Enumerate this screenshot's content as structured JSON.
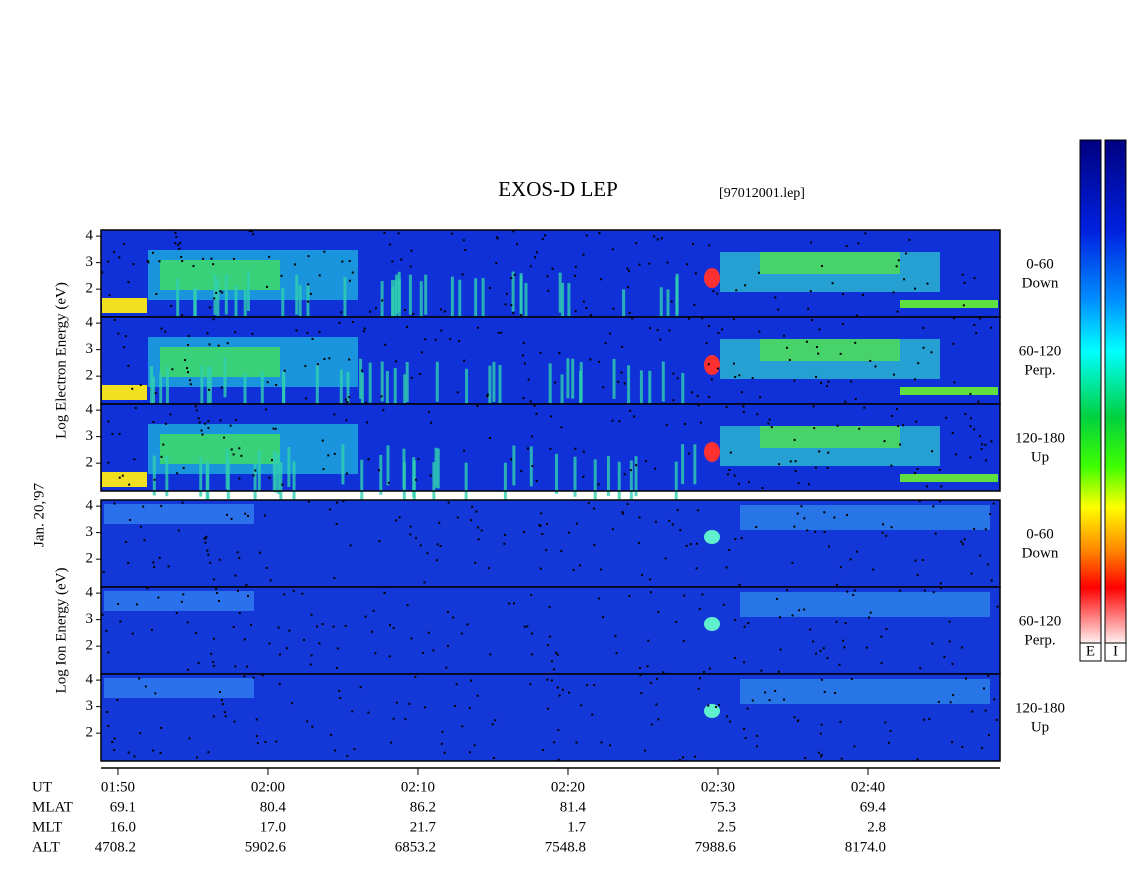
{
  "header": {
    "title": "EXOS-D LEP",
    "file": "[97012001.lep]"
  },
  "date": "Jan. 20,'97",
  "type": "spectrogram",
  "ylim": [
    0.95,
    4.23
  ],
  "yticks": [
    2,
    3,
    4
  ],
  "groups": [
    {
      "label": "Log  Electron  Energy (eV)",
      "panels": [
        [
          "0-60",
          "Down"
        ],
        [
          "60-120",
          "Perp."
        ],
        [
          "120-180",
          "Up"
        ]
      ]
    },
    {
      "label": "Log  Ion  Energy (eV)",
      "panels": [
        [
          "0-60",
          "Down"
        ],
        [
          "60-120",
          "Perp."
        ],
        [
          "120-180",
          "Up"
        ]
      ]
    }
  ],
  "xlim": [
    108.87,
    168.8
  ],
  "xticks": [
    {
      "value": 110,
      "label": "01:50"
    },
    {
      "value": 120,
      "label": "02:00"
    },
    {
      "value": 130,
      "label": "02:10"
    },
    {
      "value": 140,
      "label": "02:20"
    },
    {
      "value": 150,
      "label": "02:30"
    },
    {
      "value": 160,
      "label": "02:40"
    }
  ],
  "ephemeris": [
    {
      "name": "UT"
    },
    {
      "name": "MLAT",
      "values": [
        "69.1",
        "80.4",
        "86.2",
        "81.4",
        "75.3",
        "69.4"
      ]
    },
    {
      "name": "MLT",
      "values": [
        "16.0",
        "17.0",
        "21.7",
        "1.7",
        "2.5",
        "2.8"
      ]
    },
    {
      "name": "ALT",
      "values": [
        "4708.2",
        "5902.6",
        "6853.2",
        "7548.8",
        "7988.6",
        "8174.0"
      ]
    }
  ],
  "color_bars": [
    "E",
    "I"
  ]
}
